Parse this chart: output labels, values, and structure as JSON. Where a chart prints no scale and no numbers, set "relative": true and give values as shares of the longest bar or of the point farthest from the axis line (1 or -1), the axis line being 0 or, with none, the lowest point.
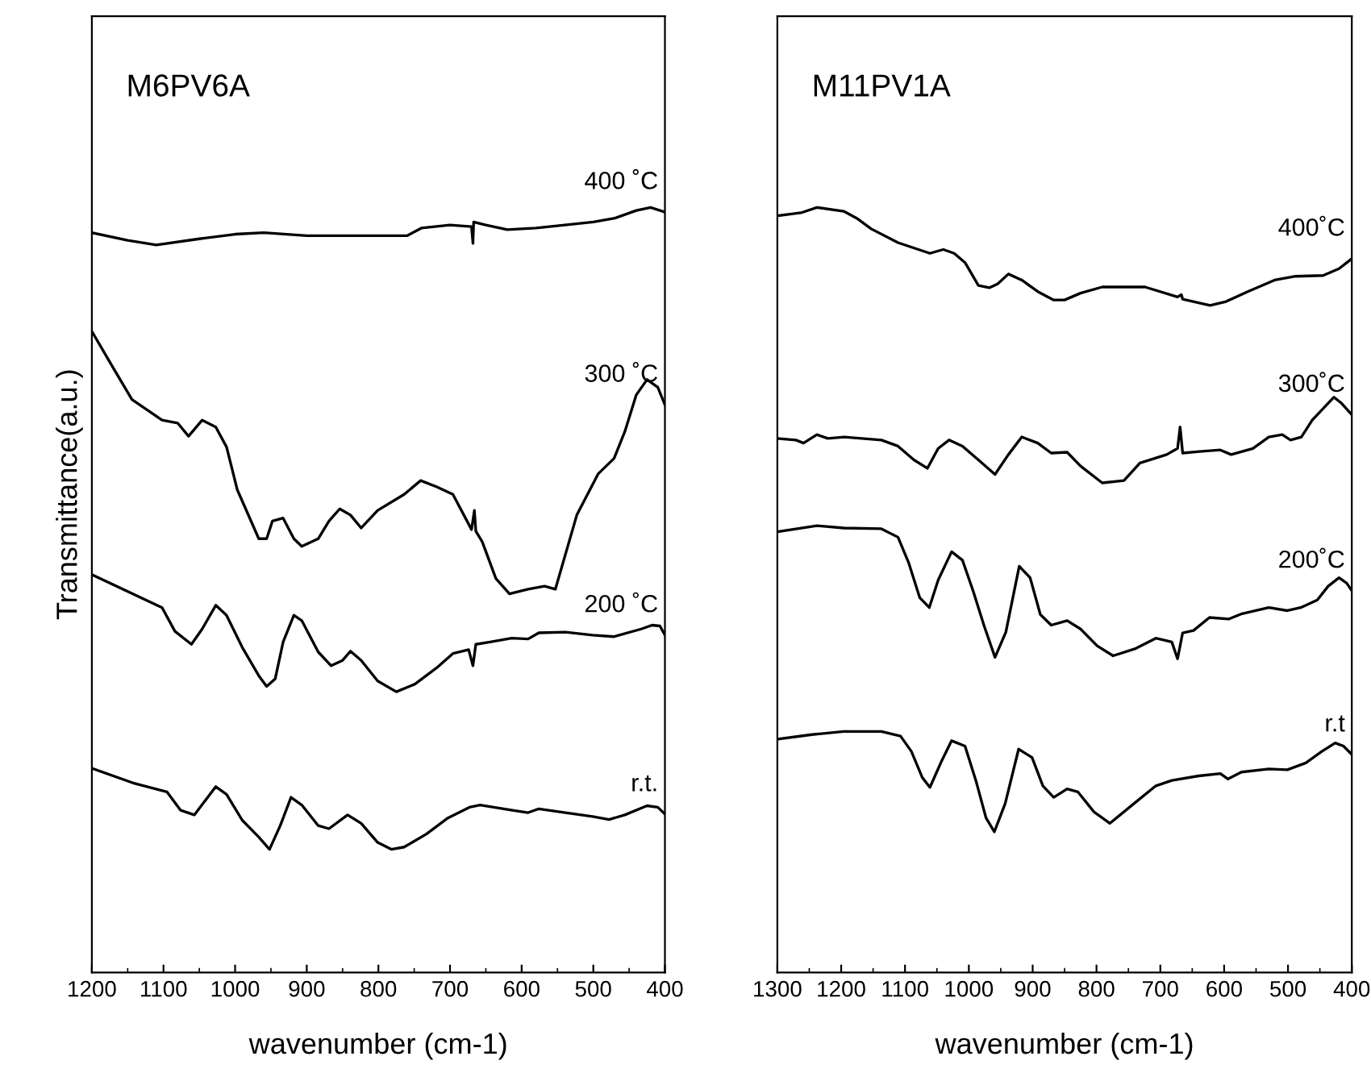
{
  "chart_data": [
    {
      "type": "line",
      "relative": true,
      "xlabel": "wavenumber (cm-1)",
      "ylabel": "Transmittance(a.u.)",
      "annotations": [
        "M6PV6A"
      ],
      "xlim": [
        1200,
        400
      ],
      "xticks": [
        1200,
        1100,
        1000,
        900,
        800,
        700,
        600,
        500,
        400
      ],
      "tick_labels": "x",
      "grid": false,
      "legend": false,
      "marker": "none",
      "line_style": "solid",
      "series": [
        {
          "name": "400 ˚C",
          "color": "#000000",
          "x": [
            1200,
            1150,
            1110,
            1050,
            1000,
            960,
            900,
            800,
            760,
            740,
            700,
            670,
            668,
            667,
            650,
            620,
            580,
            540,
            500,
            470,
            440,
            420,
            400
          ],
          "values": [
            0.967,
            0.957,
            0.951,
            0.959,
            0.965,
            0.967,
            0.963,
            0.963,
            0.963,
            0.973,
            0.977,
            0.975,
            0.953,
            0.981,
            0.977,
            0.971,
            0.973,
            0.977,
            0.981,
            0.986,
            0.996,
            1.0,
            0.994
          ]
        },
        {
          "name": "300 ˚C",
          "color": "#000000",
          "x": [
            1200,
            1170,
            1144,
            1102,
            1080,
            1065,
            1046,
            1027,
            1012,
            997,
            967,
            956,
            948,
            933,
            918,
            907,
            884,
            869,
            854,
            839,
            824,
            801,
            764,
            741,
            719,
            696,
            670,
            666,
            664,
            655,
            636,
            617,
            591,
            568,
            553,
            523,
            493,
            471,
            456,
            440,
            425,
            410,
            400
          ],
          "values": [
            0.838,
            0.79,
            0.749,
            0.722,
            0.718,
            0.701,
            0.722,
            0.713,
            0.687,
            0.631,
            0.567,
            0.567,
            0.59,
            0.594,
            0.567,
            0.557,
            0.567,
            0.59,
            0.606,
            0.598,
            0.581,
            0.604,
            0.625,
            0.643,
            0.635,
            0.625,
            0.579,
            0.604,
            0.577,
            0.563,
            0.515,
            0.495,
            0.501,
            0.505,
            0.501,
            0.598,
            0.652,
            0.672,
            0.707,
            0.755,
            0.775,
            0.765,
            0.742
          ]
        },
        {
          "name": "200 ˚C",
          "color": "#000000",
          "x": [
            1200,
            1102,
            1084,
            1061,
            1046,
            1027,
            1012,
            990,
            967,
            956,
            944,
            933,
            918,
            907,
            884,
            866,
            850,
            839,
            824,
            801,
            775,
            749,
            719,
            696,
            674,
            668,
            664,
            644,
            614,
            591,
            576,
            539,
            501,
            471,
            433,
            418,
            407,
            400
          ],
          "values": [
            0.52,
            0.477,
            0.446,
            0.429,
            0.449,
            0.48,
            0.467,
            0.425,
            0.388,
            0.374,
            0.384,
            0.432,
            0.467,
            0.46,
            0.419,
            0.401,
            0.408,
            0.42,
            0.408,
            0.381,
            0.367,
            0.377,
            0.398,
            0.417,
            0.422,
            0.401,
            0.429,
            0.432,
            0.437,
            0.436,
            0.444,
            0.445,
            0.441,
            0.439,
            0.449,
            0.454,
            0.453,
            0.441
          ]
        },
        {
          "name": "r.t.",
          "color": "#000000",
          "x": [
            1200,
            1140,
            1095,
            1076,
            1057,
            1027,
            1012,
            990,
            967,
            952,
            937,
            922,
            907,
            884,
            869,
            843,
            824,
            801,
            782,
            764,
            733,
            703,
            673,
            658,
            613,
            591,
            576,
            539,
            501,
            478,
            456,
            425,
            410,
            400
          ],
          "values": [
            0.267,
            0.247,
            0.236,
            0.212,
            0.206,
            0.243,
            0.233,
            0.199,
            0.177,
            0.161,
            0.192,
            0.229,
            0.219,
            0.192,
            0.188,
            0.206,
            0.195,
            0.17,
            0.161,
            0.164,
            0.181,
            0.202,
            0.216,
            0.219,
            0.212,
            0.209,
            0.214,
            0.209,
            0.204,
            0.2,
            0.206,
            0.218,
            0.216,
            0.207
          ]
        }
      ]
    },
    {
      "type": "line",
      "relative": true,
      "xlabel": "wavenumber (cm-1)",
      "annotations": [
        "M11PV1A"
      ],
      "xlim": [
        1300,
        400
      ],
      "xticks": [
        1300,
        1200,
        1100,
        1000,
        900,
        800,
        700,
        600,
        500,
        400
      ],
      "tick_labels": "x",
      "grid": false,
      "legend": false,
      "marker": "none",
      "line_style": "solid",
      "series": [
        {
          "name": "400˚C",
          "color": "#000000",
          "x": [
            1300,
            1263,
            1238,
            1196,
            1174,
            1153,
            1111,
            1061,
            1040,
            1023,
            1006,
            985,
            968,
            955,
            938,
            917,
            892,
            867,
            850,
            825,
            791,
            724,
            673,
            667,
            665,
            622,
            597,
            563,
            521,
            488,
            445,
            420,
            400
          ],
          "values": [
            0.989,
            0.993,
            1.0,
            0.995,
            0.985,
            0.972,
            0.954,
            0.94,
            0.945,
            0.94,
            0.928,
            0.898,
            0.895,
            0.9,
            0.913,
            0.905,
            0.89,
            0.879,
            0.879,
            0.888,
            0.896,
            0.896,
            0.883,
            0.886,
            0.88,
            0.872,
            0.877,
            0.89,
            0.905,
            0.91,
            0.911,
            0.92,
            0.933
          ]
        },
        {
          "name": "300˚C",
          "color": "#000000",
          "x": [
            1300,
            1271,
            1259,
            1238,
            1221,
            1195,
            1137,
            1111,
            1086,
            1065,
            1048,
            1031,
            1010,
            985,
            959,
            938,
            917,
            892,
            871,
            846,
            825,
            791,
            757,
            732,
            690,
            673,
            669,
            665,
            639,
            606,
            589,
            555,
            530,
            509,
            496,
            479,
            462,
            445,
            428,
            416,
            400
          ],
          "values": [
            0.698,
            0.696,
            0.692,
            0.703,
            0.698,
            0.7,
            0.696,
            0.688,
            0.67,
            0.659,
            0.685,
            0.696,
            0.688,
            0.67,
            0.651,
            0.677,
            0.7,
            0.692,
            0.679,
            0.68,
            0.662,
            0.64,
            0.643,
            0.666,
            0.677,
            0.685,
            0.713,
            0.679,
            0.681,
            0.683,
            0.677,
            0.685,
            0.7,
            0.703,
            0.696,
            0.7,
            0.722,
            0.737,
            0.752,
            0.744,
            0.729
          ]
        },
        {
          "name": "200˚C",
          "color": "#000000",
          "x": [
            1300,
            1238,
            1196,
            1137,
            1111,
            1094,
            1077,
            1062,
            1048,
            1027,
            1010,
            993,
            976,
            959,
            942,
            921,
            904,
            888,
            871,
            846,
            825,
            799,
            774,
            740,
            707,
            682,
            673,
            665,
            648,
            623,
            593,
            572,
            530,
            501,
            480,
            454,
            437,
            420,
            408,
            400
          ],
          "values": [
            0.576,
            0.584,
            0.581,
            0.58,
            0.569,
            0.535,
            0.49,
            0.477,
            0.513,
            0.55,
            0.539,
            0.498,
            0.453,
            0.412,
            0.445,
            0.531,
            0.516,
            0.468,
            0.454,
            0.46,
            0.449,
            0.427,
            0.414,
            0.423,
            0.437,
            0.432,
            0.41,
            0.444,
            0.447,
            0.464,
            0.462,
            0.469,
            0.477,
            0.473,
            0.477,
            0.487,
            0.505,
            0.516,
            0.509,
            0.499
          ]
        },
        {
          "name": "r.t",
          "color": "#000000",
          "x": [
            1300,
            1246,
            1196,
            1137,
            1107,
            1090,
            1073,
            1061,
            1044,
            1027,
            1006,
            989,
            973,
            960,
            943,
            922,
            901,
            884,
            867,
            846,
            829,
            804,
            779,
            741,
            707,
            682,
            640,
            606,
            594,
            573,
            530,
            501,
            472,
            447,
            426,
            413,
            400
          ],
          "values": [
            0.305,
            0.311,
            0.315,
            0.315,
            0.309,
            0.289,
            0.255,
            0.242,
            0.274,
            0.303,
            0.296,
            0.251,
            0.202,
            0.184,
            0.221,
            0.292,
            0.281,
            0.244,
            0.229,
            0.24,
            0.236,
            0.21,
            0.195,
            0.221,
            0.244,
            0.251,
            0.257,
            0.26,
            0.253,
            0.262,
            0.266,
            0.265,
            0.274,
            0.289,
            0.3,
            0.296,
            0.285
          ]
        }
      ]
    }
  ]
}
